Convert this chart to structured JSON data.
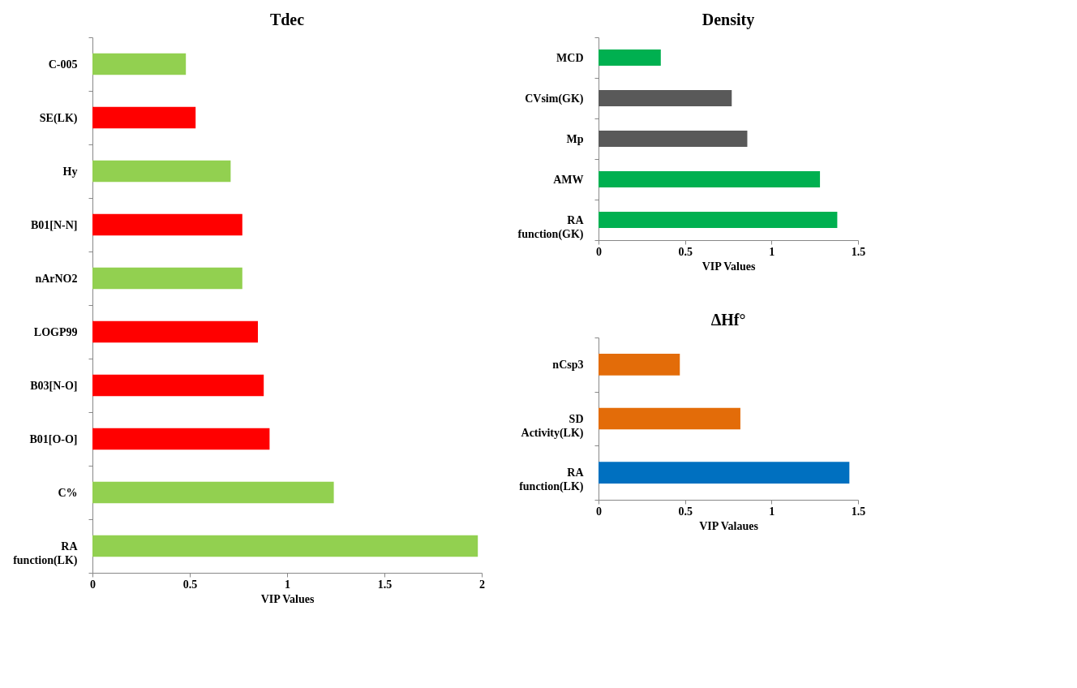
{
  "chart_data": [
    {
      "type": "bar",
      "orientation": "horizontal",
      "title": "Tdec",
      "xlabel": "VIP Values",
      "categories": [
        "C-005",
        "SE(LK)",
        "Hy",
        "B01[N-N]",
        "nArNO2",
        "LOGP99",
        "B03[N-O]",
        "B01[O-O]",
        "C%",
        "RA function(LK)"
      ],
      "values": [
        0.48,
        0.53,
        0.71,
        0.77,
        0.77,
        0.85,
        0.88,
        0.91,
        1.24,
        1.98
      ],
      "colors": [
        "#92d050",
        "#ff0000",
        "#92d050",
        "#ff0000",
        "#92d050",
        "#ff0000",
        "#ff0000",
        "#ff0000",
        "#92d050",
        "#92d050"
      ],
      "xlim": [
        0,
        2
      ],
      "xticks": [
        0,
        0.5,
        1,
        1.5,
        2
      ]
    },
    {
      "type": "bar",
      "orientation": "horizontal",
      "title": "Density",
      "xlabel": "VIP Values",
      "categories": [
        "MCD",
        "CVsim(GK)",
        "Mp",
        "AMW",
        "RA function(GK)"
      ],
      "values": [
        0.36,
        0.77,
        0.86,
        1.28,
        1.38
      ],
      "colors": [
        "#00b050",
        "#595959",
        "#595959",
        "#00b050",
        "#00b050"
      ],
      "xlim": [
        0,
        1.5
      ],
      "xticks": [
        0,
        0.5,
        1,
        1.5
      ]
    },
    {
      "type": "bar",
      "orientation": "horizontal",
      "title": "ΔHf°",
      "xlabel": "VIP Valaues",
      "categories": [
        "nCsp3",
        "SD Activity(LK)",
        "RA function(LK)"
      ],
      "values": [
        0.47,
        0.82,
        1.45
      ],
      "colors": [
        "#e36c09",
        "#e36c09",
        "#0070c0"
      ],
      "xlim": [
        0,
        1.5
      ],
      "xticks": [
        0,
        0.5,
        1,
        1.5
      ]
    }
  ]
}
